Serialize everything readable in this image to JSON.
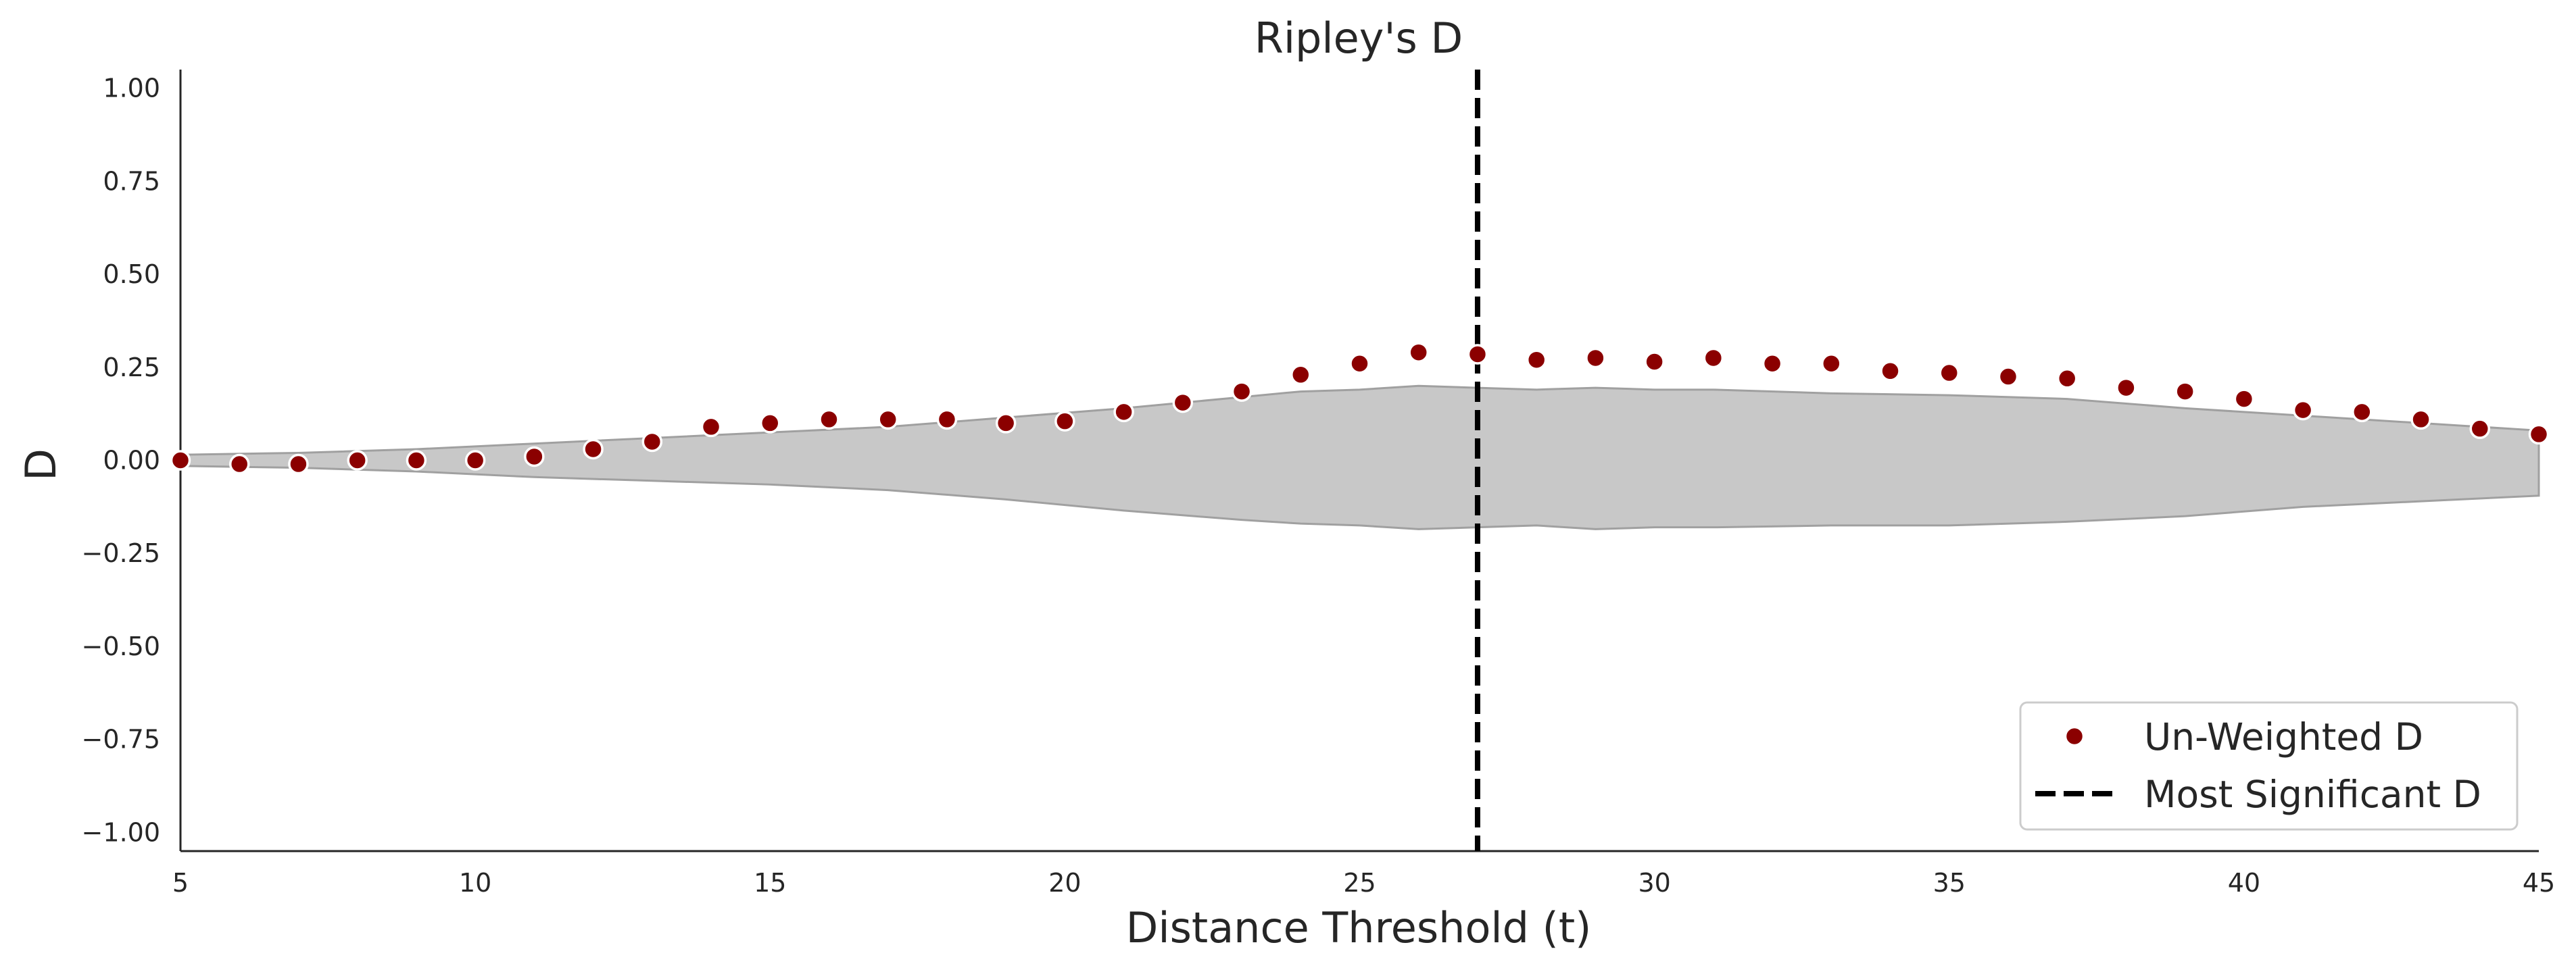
{
  "chart_data": {
    "type": "scatter",
    "title": "Ripley's D",
    "xlabel": "Distance Threshold (t)",
    "ylabel": "D",
    "xlim": [
      5,
      45
    ],
    "ylim": [
      -1.05,
      1.05
    ],
    "xticks": [
      5,
      10,
      15,
      20,
      25,
      30,
      35,
      40,
      45
    ],
    "yticks": [
      1.0,
      0.75,
      0.5,
      0.25,
      0.0,
      -0.25,
      -0.5,
      -0.75,
      -1.0
    ],
    "xtick_labels": [
      "5",
      "10",
      "15",
      "20",
      "25",
      "30",
      "35",
      "40",
      "45"
    ],
    "ytick_labels": [
      "1.00",
      "0.75",
      "0.50",
      "0.25",
      "0.00",
      "−0.25",
      "−0.50",
      "−0.75",
      "−1.00"
    ],
    "grid": false,
    "legend_position": "lower-right",
    "series": [
      {
        "name": "Un-Weighted D",
        "kind": "scatter",
        "color": "#8b0000",
        "x": [
          5,
          6,
          7,
          8,
          9,
          10,
          11,
          12,
          13,
          14,
          15,
          16,
          17,
          18,
          19,
          20,
          21,
          22,
          23,
          24,
          25,
          26,
          27,
          28,
          29,
          30,
          31,
          32,
          33,
          34,
          35,
          36,
          37,
          38,
          39,
          40,
          41,
          42,
          43,
          44,
          45
        ],
        "y": [
          0.0,
          -0.01,
          -0.01,
          0.0,
          0.0,
          0.0,
          0.01,
          0.03,
          0.05,
          0.09,
          0.1,
          0.11,
          0.11,
          0.11,
          0.1,
          0.105,
          0.13,
          0.155,
          0.185,
          0.23,
          0.26,
          0.29,
          0.285,
          0.27,
          0.275,
          0.265,
          0.275,
          0.26,
          0.26,
          0.24,
          0.235,
          0.225,
          0.22,
          0.195,
          0.185,
          0.165,
          0.135,
          0.13,
          0.11,
          0.085,
          0.07
        ]
      },
      {
        "name": "Most Significant D",
        "kind": "vline",
        "color": "#000000",
        "x": 27
      }
    ],
    "envelope": {
      "color": "#c8c8c8",
      "edge_color": "#a0a0a0",
      "x": [
        5,
        7,
        9,
        11,
        13,
        15,
        17,
        19,
        21,
        23,
        24,
        25,
        26,
        27,
        28,
        29,
        30,
        31,
        33,
        35,
        37,
        39,
        41,
        43,
        45
      ],
      "upper": [
        0.015,
        0.02,
        0.03,
        0.045,
        0.06,
        0.075,
        0.09,
        0.115,
        0.14,
        0.17,
        0.185,
        0.19,
        0.2,
        0.195,
        0.19,
        0.195,
        0.19,
        0.19,
        0.18,
        0.175,
        0.165,
        0.14,
        0.12,
        0.1,
        0.08
      ],
      "lower": [
        -0.015,
        -0.02,
        -0.03,
        -0.045,
        -0.055,
        -0.065,
        -0.08,
        -0.105,
        -0.135,
        -0.16,
        -0.17,
        -0.175,
        -0.185,
        -0.18,
        -0.175,
        -0.185,
        -0.18,
        -0.18,
        -0.175,
        -0.175,
        -0.165,
        -0.15,
        -0.125,
        -0.11,
        -0.095
      ]
    }
  }
}
